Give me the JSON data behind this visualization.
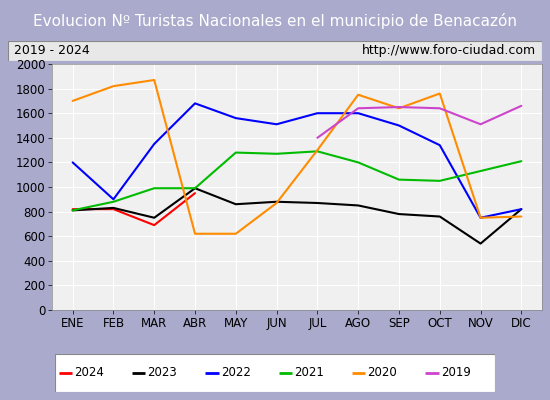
{
  "title": "Evolucion Nº Turistas Nacionales en el municipio de Benacazón",
  "subtitle_left": "2019 - 2024",
  "subtitle_right": "http://www.foro-ciudad.com",
  "months": [
    "ENE",
    "FEB",
    "MAR",
    "ABR",
    "MAY",
    "JUN",
    "JUL",
    "AGO",
    "SEP",
    "OCT",
    "NOV",
    "DIC"
  ],
  "ylim": [
    0,
    2000
  ],
  "yticks": [
    0,
    200,
    400,
    600,
    800,
    1000,
    1200,
    1400,
    1600,
    1800,
    2000
  ],
  "series": {
    "2024": {
      "color": "#ff0000",
      "values": [
        820,
        820,
        690,
        950,
        null,
        null,
        null,
        null,
        null,
        null,
        null,
        null
      ]
    },
    "2023": {
      "color": "#000000",
      "values": [
        810,
        830,
        750,
        990,
        860,
        880,
        870,
        850,
        780,
        760,
        540,
        820
      ]
    },
    "2022": {
      "color": "#0000ff",
      "values": [
        1200,
        900,
        1350,
        1680,
        1560,
        1510,
        1600,
        1600,
        1500,
        1340,
        750,
        820
      ]
    },
    "2021": {
      "color": "#00bb00",
      "values": [
        810,
        880,
        990,
        990,
        1280,
        1270,
        1290,
        1200,
        1060,
        1050,
        1130,
        1210
      ]
    },
    "2020": {
      "color": "#ff8c00",
      "values": [
        1700,
        1820,
        1870,
        620,
        620,
        870,
        1300,
        1750,
        1640,
        1760,
        750,
        760
      ]
    },
    "2019": {
      "color": "#cc44cc",
      "values": [
        null,
        null,
        null,
        null,
        null,
        null,
        1400,
        1640,
        1650,
        1640,
        1510,
        1660
      ]
    }
  },
  "legend_order": [
    "2024",
    "2023",
    "2022",
    "2021",
    "2020",
    "2019"
  ],
  "title_bg_color": "#5588cc",
  "title_text_color": "#ffffff",
  "plot_bg_color": "#e0e0e8",
  "grid_color": "#ffffff",
  "title_fontsize": 11,
  "subtitle_fontsize": 9,
  "tick_fontsize": 8.5,
  "linewidth": 1.5
}
